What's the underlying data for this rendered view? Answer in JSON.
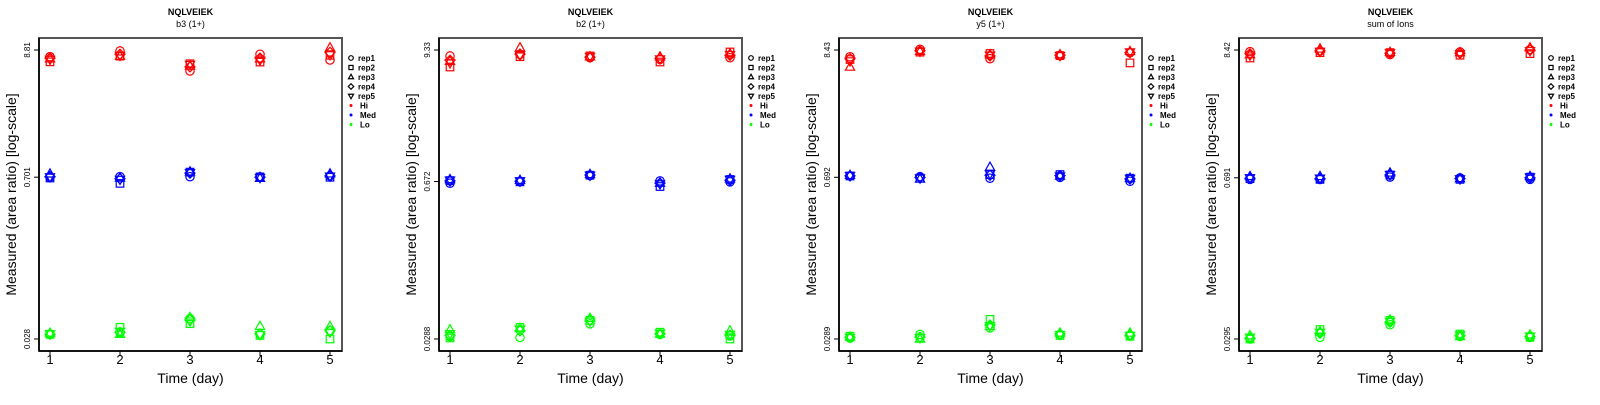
{
  "colors": {
    "Hi": "#ff0000",
    "Med": "#0000ff",
    "Lo": "#00ff00",
    "frame": "#555555"
  },
  "legend": {
    "reps": [
      {
        "label": "rep1",
        "shape": "circle"
      },
      {
        "label": "rep2",
        "shape": "square"
      },
      {
        "label": "rep3",
        "shape": "triangle-up"
      },
      {
        "label": "rep4",
        "shape": "diamond"
      },
      {
        "label": "rep5",
        "shape": "triangle-down"
      }
    ],
    "levels": [
      "Hi",
      "Med",
      "Lo"
    ]
  },
  "chart_data": [
    {
      "type": "scatter",
      "title": "NQLVEIEK",
      "subtitle": "b3 (1+)",
      "xlabel": "Time (day)",
      "ylabel": "Measured (area ratio) [log-scale]",
      "yscale": "log",
      "x": [
        1,
        2,
        3,
        4,
        5
      ],
      "yticks": [
        8.81,
        0.701,
        0.028
      ],
      "ytick_labels": [
        "8.81",
        "0.701",
        "0.028"
      ],
      "legend_position": "right",
      "series": {
        "Hi": [
          [
            7.71,
            8.64,
            5.8,
            8.09,
            7.22
          ],
          [
            6.96,
            7.8,
            6.7,
            6.93,
            7.93
          ],
          [
            7.4,
            7.8,
            6.4,
            7.4,
            9.22
          ],
          [
            7.5,
            8.1,
            6.3,
            7.5,
            8.4
          ],
          [
            7.3,
            7.9,
            6.6,
            7.2,
            8.0
          ]
        ],
        "Med": [
          [
            0.7,
            0.708,
            0.708,
            0.705,
            0.72
          ],
          [
            0.69,
            0.62,
            0.775,
            0.705,
            0.7
          ],
          [
            0.749,
            0.69,
            0.78,
            0.687,
            0.75
          ],
          [
            0.71,
            0.68,
            0.76,
            0.7,
            0.72
          ],
          [
            0.705,
            0.67,
            0.765,
            0.695,
            0.715
          ]
        ],
        "Lo": [
          [
            0.0307,
            0.0316,
            0.042,
            0.0308,
            0.033
          ],
          [
            0.0307,
            0.0353,
            0.038,
            0.0301,
            0.028
          ],
          [
            0.0315,
            0.0308,
            0.043,
            0.0361,
            0.036
          ],
          [
            0.0308,
            0.032,
            0.041,
            0.031,
            0.033
          ],
          [
            0.031,
            0.0325,
            0.04,
            0.0305,
            0.032
          ]
        ]
      }
    },
    {
      "type": "scatter",
      "title": "NQLVEIEK",
      "subtitle": "b2 (1+)",
      "xlabel": "Time (day)",
      "ylabel": "Measured (area ratio) [log-scale]",
      "yscale": "log",
      "x": [
        1,
        2,
        3,
        4,
        5
      ],
      "yticks": [
        9.33,
        0.672,
        0.0288
      ],
      "ytick_labels": [
        "9.33",
        "0.672",
        "0.0288"
      ],
      "legend_position": "right",
      "series": {
        "Hi": [
          [
            8.28,
            8.55,
            8.0,
            7.73,
            8.0
          ],
          [
            6.64,
            8.16,
            8.28,
            7.34,
            8.97
          ],
          [
            7.45,
            9.77,
            8.16,
            8.16,
            8.66
          ],
          [
            7.6,
            8.6,
            8.1,
            7.9,
            8.4
          ],
          [
            7.2,
            8.4,
            8.2,
            7.8,
            8.5
          ]
        ],
        "Med": [
          [
            0.65,
            0.672,
            0.757,
            0.68,
            0.668
          ],
          [
            0.685,
            0.668,
            0.762,
            0.608,
            0.7
          ],
          [
            0.7,
            0.69,
            0.775,
            0.65,
            0.71
          ],
          [
            0.68,
            0.675,
            0.765,
            0.65,
            0.69
          ],
          [
            0.69,
            0.68,
            0.76,
            0.64,
            0.7
          ]
        ],
        "Lo": [
          [
            0.0304,
            0.0297,
            0.039,
            0.0316,
            0.0307
          ],
          [
            0.0294,
            0.0363,
            0.0418,
            0.033,
            0.0288
          ],
          [
            0.0347,
            0.0358,
            0.0436,
            0.0318,
            0.034
          ],
          [
            0.031,
            0.034,
            0.042,
            0.032,
            0.031
          ],
          [
            0.032,
            0.035,
            0.041,
            0.0322,
            0.0315
          ]
        ]
      }
    },
    {
      "type": "scatter",
      "title": "NQLVEIEK",
      "subtitle": "y5 (1+)",
      "xlabel": "Time (day)",
      "ylabel": "Measured (area ratio) [log-scale]",
      "yscale": "log",
      "x": [
        1,
        2,
        3,
        4,
        5
      ],
      "yticks": [
        8.43,
        0.692,
        0.0289
      ],
      "ytick_labels": [
        "8.43",
        "0.692",
        "0.0289"
      ],
      "legend_position": "right",
      "series": {
        "Hi": [
          [
            7.38,
            8.55,
            7.11,
            7.55,
            7.99
          ],
          [
            6.99,
            8.08,
            7.87,
            7.55,
            6.54
          ],
          [
            6.03,
            8.2,
            7.7,
            7.7,
            8.2
          ],
          [
            7.1,
            8.3,
            7.5,
            7.6,
            8.0
          ],
          [
            6.8,
            8.2,
            7.6,
            7.55,
            8.1
          ]
        ],
        "Med": [
          [
            0.71,
            0.7,
            0.68,
            0.692,
            0.64
          ],
          [
            0.71,
            0.68,
            0.73,
            0.73,
            0.68
          ],
          [
            0.72,
            0.67,
            0.845,
            0.71,
            0.68
          ],
          [
            0.712,
            0.69,
            0.72,
            0.715,
            0.67
          ],
          [
            0.715,
            0.68,
            0.74,
            0.71,
            0.675
          ]
        ],
        "Lo": [
          [
            0.0294,
            0.0316,
            0.036,
            0.0316,
            0.031
          ],
          [
            0.0305,
            0.0295,
            0.0425,
            0.031,
            0.0305
          ],
          [
            0.03,
            0.0289,
            0.037,
            0.0325,
            0.0325
          ],
          [
            0.03,
            0.03,
            0.038,
            0.0318,
            0.0312
          ],
          [
            0.0298,
            0.0295,
            0.0375,
            0.0315,
            0.031
          ]
        ]
      }
    },
    {
      "type": "scatter",
      "title": "NQLVEIEK",
      "subtitle": "sum of Ions",
      "xlabel": "Time (day)",
      "ylabel": "Measured (area ratio) [log-scale]",
      "yscale": "log",
      "x": [
        1,
        2,
        3,
        4,
        5
      ],
      "yticks": [
        8.42,
        0.691,
        0.0295
      ],
      "ytick_labels": [
        "8.42",
        "0.691",
        "0.0295"
      ],
      "legend_position": "right",
      "series": {
        "Hi": [
          [
            8.15,
            8.25,
            7.7,
            8.1,
            8.5
          ],
          [
            7.2,
            8.0,
            8.0,
            7.6,
            7.85
          ],
          [
            7.7,
            8.6,
            8.05,
            8.0,
            8.8
          ],
          [
            7.8,
            8.3,
            7.9,
            7.9,
            8.4
          ],
          [
            7.6,
            8.2,
            7.95,
            7.85,
            8.3
          ]
        ],
        "Med": [
          [
            0.67,
            0.67,
            0.7,
            0.69,
            0.67
          ],
          [
            0.68,
            0.67,
            0.73,
            0.67,
            0.7
          ],
          [
            0.71,
            0.71,
            0.76,
            0.68,
            0.71
          ],
          [
            0.685,
            0.68,
            0.73,
            0.68,
            0.69
          ],
          [
            0.69,
            0.685,
            0.735,
            0.675,
            0.7
          ]
        ],
        "Lo": [
          [
            0.0295,
            0.0305,
            0.039,
            0.031,
            0.0305
          ],
          [
            0.0295,
            0.0355,
            0.0425,
            0.0325,
            0.0305
          ],
          [
            0.0315,
            0.034,
            0.043,
            0.031,
            0.032
          ],
          [
            0.03,
            0.033,
            0.041,
            0.0315,
            0.031
          ],
          [
            0.0305,
            0.0335,
            0.0415,
            0.0318,
            0.0312
          ]
        ]
      }
    }
  ]
}
